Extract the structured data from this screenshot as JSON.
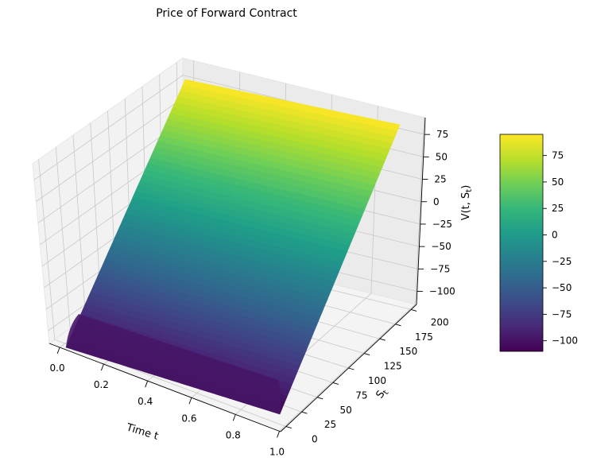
{
  "chart_data": {
    "type": "surface3d",
    "title": "Price of Forward Contract",
    "xlabel": "Time t",
    "ylabel": "S_t",
    "zlabel": "V(t, S_t)",
    "xlim": [
      0.0,
      1.0
    ],
    "ylim": [
      0,
      200
    ],
    "zlim": [
      -110,
      95
    ],
    "x_ticks": [
      "0.0",
      "0.2",
      "0.4",
      "0.6",
      "0.8",
      "1.0"
    ],
    "y_ticks": [
      "0",
      "25",
      "50",
      "75",
      "100",
      "125",
      "150",
      "175",
      "200"
    ],
    "z_ticks": [
      "-100",
      "-75",
      "-50",
      "-25",
      "0",
      "25",
      "50",
      "75"
    ],
    "surface": {
      "corners": [
        {
          "t": 0.0,
          "S": 0,
          "V": -105
        },
        {
          "t": 0.0,
          "S": 200,
          "V": 95
        },
        {
          "t": 1.0,
          "S": 0,
          "V": -110
        },
        {
          "t": 1.0,
          "S": 200,
          "V": 90
        }
      ]
    },
    "colormap": "viridis",
    "colorbar": {
      "range": [
        -110,
        95
      ],
      "ticks": [
        "75",
        "50",
        "25",
        "0",
        "-25",
        "-50",
        "-75",
        "-100"
      ]
    },
    "grid": true
  }
}
